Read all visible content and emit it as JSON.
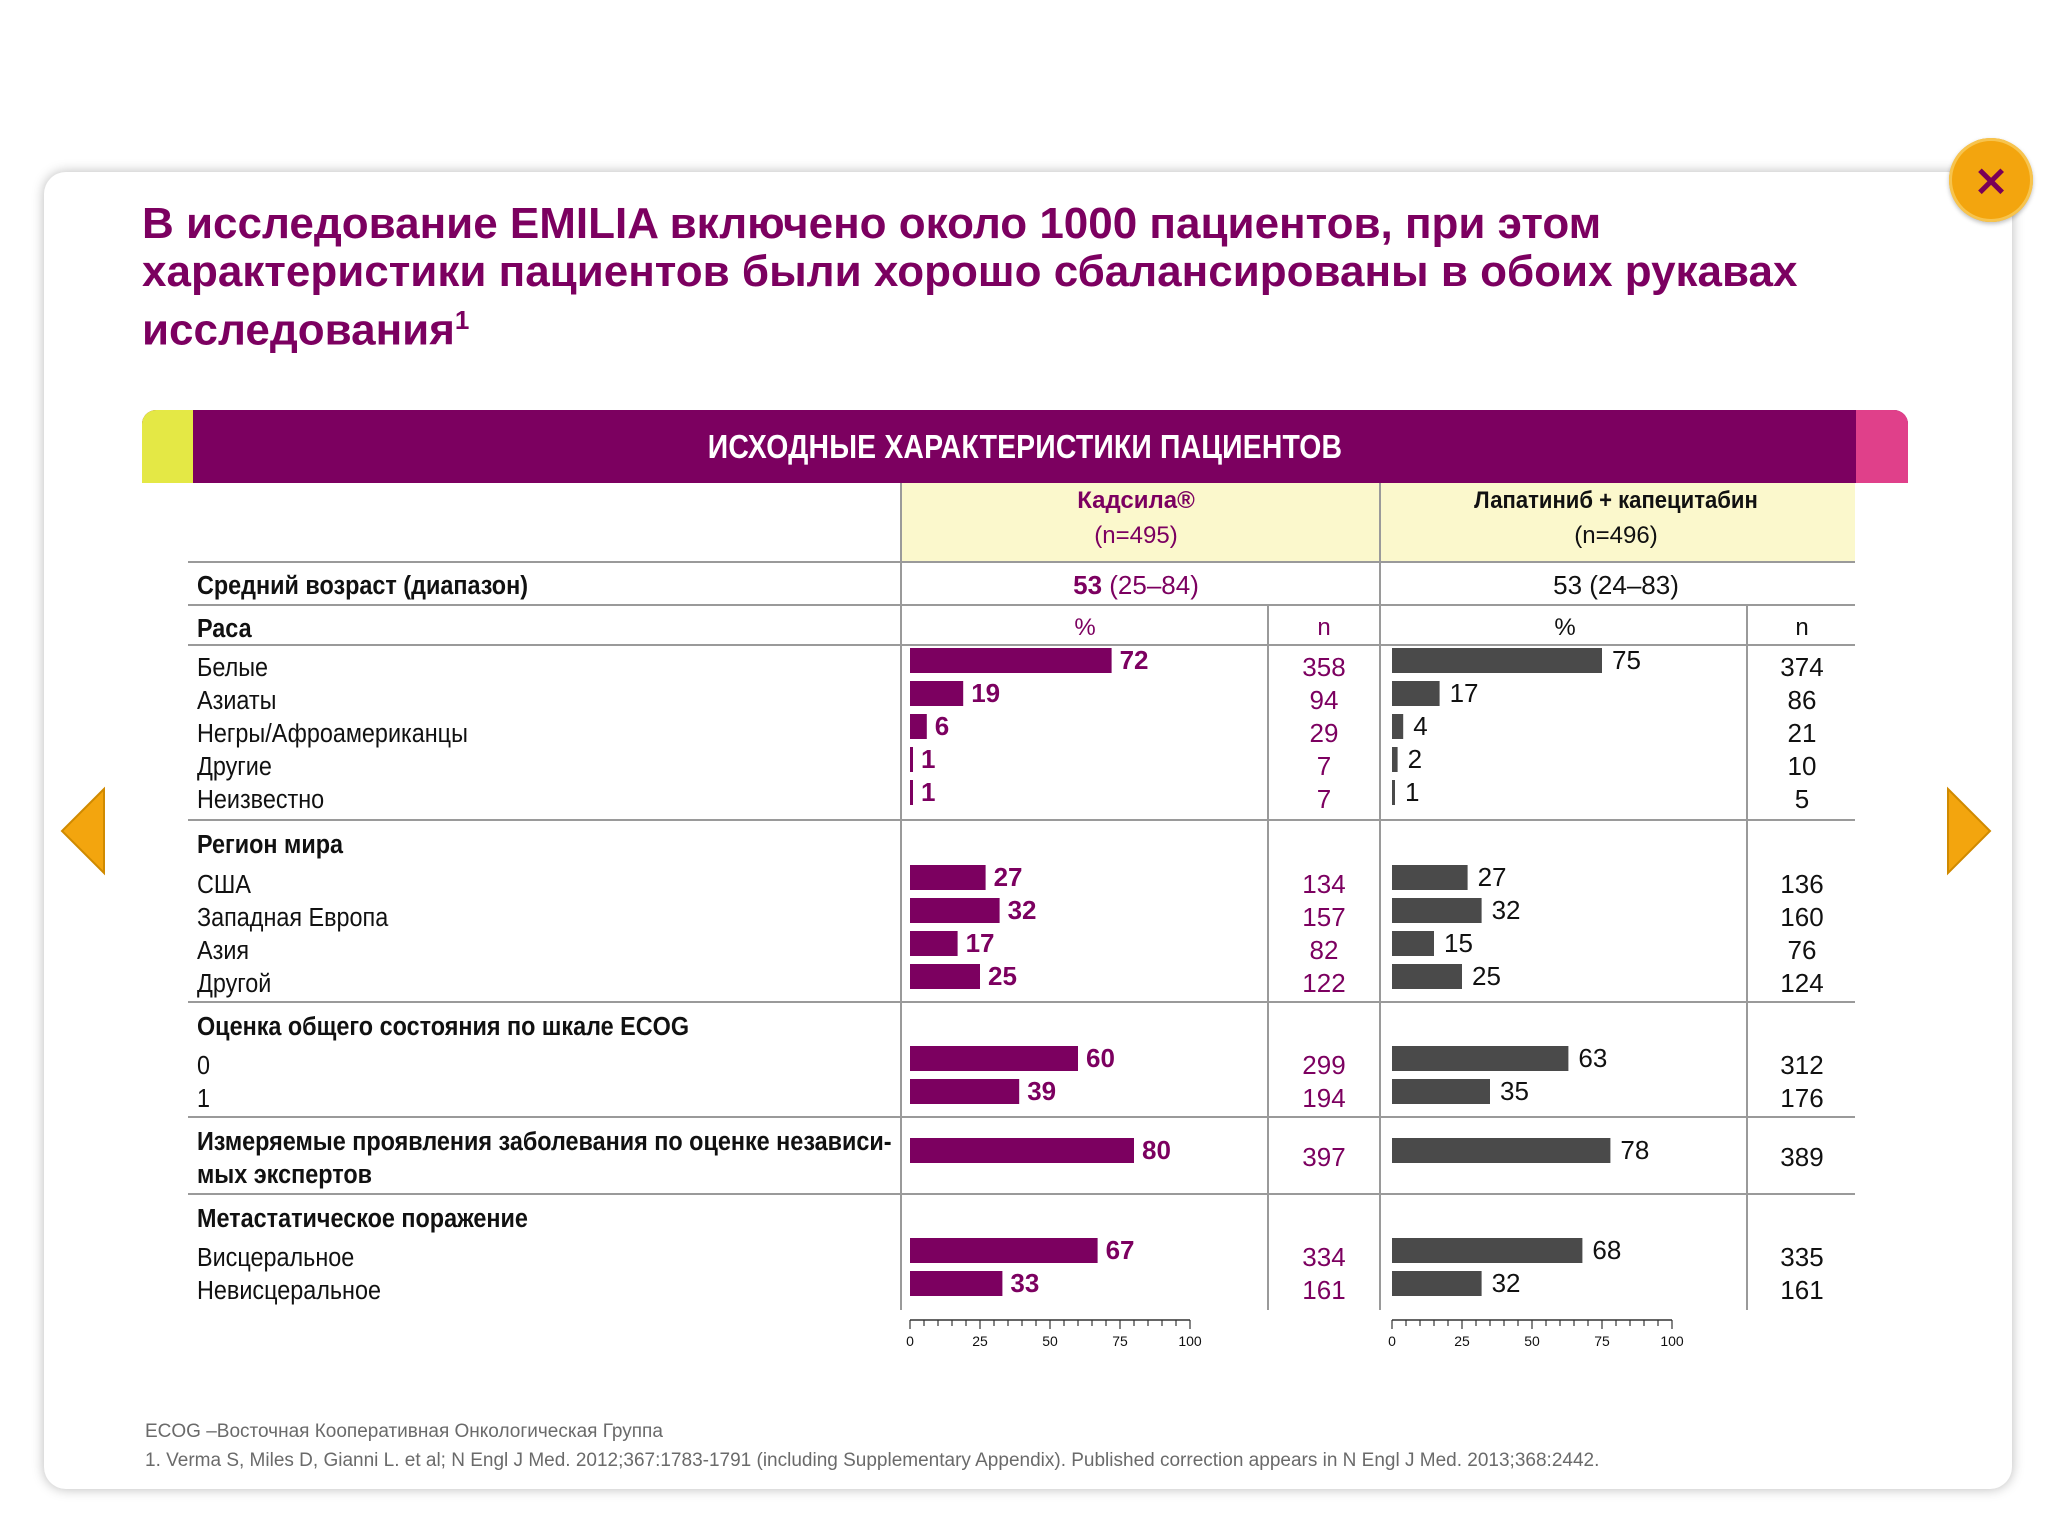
{
  "title": "В исследование EMILIA включено около 1000 пациентов, при этом характеристики пациентов были хорошо сбалансированы в обоих рукавах исследования",
  "title_sup": "1",
  "banner": "ИСХОДНЫЕ ХАРАКТЕРИСТИКИ ПАЦИЕНТОВ",
  "nav": {
    "close": "×"
  },
  "colors": {
    "kadcyla": "#7c0060",
    "lapatinib": "#4a4a4a",
    "header_bg": "#fbf8cc",
    "banner": "#7c0060",
    "accent_yellow": "#e4e845",
    "accent_pink": "#e0408a",
    "button": "#f3a50e"
  },
  "columns": {
    "kadcyla": {
      "name": "Кадсила®",
      "n": "(n=495)"
    },
    "lapatinib": {
      "name": "Лапатиниб + капецитабин",
      "n": "(n=496)"
    },
    "pct": "%",
    "count": "n"
  },
  "age": {
    "label": "Средний возраст (диапазон)",
    "kadcyla_median": "53",
    "kadcyla_range": " (25–84)",
    "lapatinib": "53 (24–83)"
  },
  "axis_ticks": [
    "0",
    "25",
    "50",
    "75",
    "100"
  ],
  "chart_data": {
    "type": "bar",
    "orientation": "horizontal",
    "xlim": [
      0,
      100
    ],
    "groups": [
      {
        "title": "Раса",
        "rows": [
          {
            "label": "Белые",
            "kadcyla_pct": 72,
            "kadcyla_n": 358,
            "lapatinib_pct": 75,
            "lapatinib_n": 374
          },
          {
            "label": "Азиаты",
            "kadcyla_pct": 19,
            "kadcyla_n": 94,
            "lapatinib_pct": 17,
            "lapatinib_n": 86
          },
          {
            "label": "Негры/Афроамериканцы",
            "kadcyla_pct": 6,
            "kadcyla_n": 29,
            "lapatinib_pct": 4,
            "lapatinib_n": 21
          },
          {
            "label": "Другие",
            "kadcyla_pct": 1,
            "kadcyla_n": 7,
            "lapatinib_pct": 2,
            "lapatinib_n": 10
          },
          {
            "label": "Неизвестно",
            "kadcyla_pct": 1,
            "kadcyla_n": 7,
            "lapatinib_pct": 1,
            "lapatinib_n": 5
          }
        ]
      },
      {
        "title": "Регион мира",
        "rows": [
          {
            "label": "США",
            "kadcyla_pct": 27,
            "kadcyla_n": 134,
            "lapatinib_pct": 27,
            "lapatinib_n": 136
          },
          {
            "label": "Западная Европа",
            "kadcyla_pct": 32,
            "kadcyla_n": 157,
            "lapatinib_pct": 32,
            "lapatinib_n": 160
          },
          {
            "label": "Азия",
            "kadcyla_pct": 17,
            "kadcyla_n": 82,
            "lapatinib_pct": 15,
            "lapatinib_n": 76
          },
          {
            "label": "Другой",
            "kadcyla_pct": 25,
            "kadcyla_n": 122,
            "lapatinib_pct": 25,
            "lapatinib_n": 124
          }
        ]
      },
      {
        "title": "Оценка общего состояния по шкале ECOG",
        "rows": [
          {
            "label": "0",
            "kadcyla_pct": 60,
            "kadcyla_n": 299,
            "lapatinib_pct": 63,
            "lapatinib_n": 312
          },
          {
            "label": "1",
            "kadcyla_pct": 39,
            "kadcyla_n": 194,
            "lapatinib_pct": 35,
            "lapatinib_n": 176
          }
        ]
      },
      {
        "title": "Измеряемые проявления заболевания по оценке независимых экспертов",
        "title_lines": [
          "Измеряемые проявления заболевания по оценке независи-",
          "мых экспертов"
        ],
        "rows": [
          {
            "label": "",
            "kadcyla_pct": 80,
            "kadcyla_n": 397,
            "lapatinib_pct": 78,
            "lapatinib_n": 389
          }
        ]
      },
      {
        "title": "Метастатическое поражение",
        "rows": [
          {
            "label": "Висцеральное",
            "kadcyla_pct": 67,
            "kadcyla_n": 334,
            "lapatinib_pct": 68,
            "lapatinib_n": 335
          },
          {
            "label": "Невисцеральное",
            "kadcyla_pct": 33,
            "kadcyla_n": 161,
            "lapatinib_pct": 32,
            "lapatinib_n": 161
          }
        ]
      }
    ]
  },
  "footnotes": {
    "abbrev": "ECOG –Восточная Кооперативная Онкологическая Группа",
    "ref": "1. Verma S, Miles D, Gianni L. et al; N Engl J Med. 2012;367:1783-1791 (including Supplementary Appendix). Published correction appears in N Engl J Med. 2013;368:2442."
  }
}
